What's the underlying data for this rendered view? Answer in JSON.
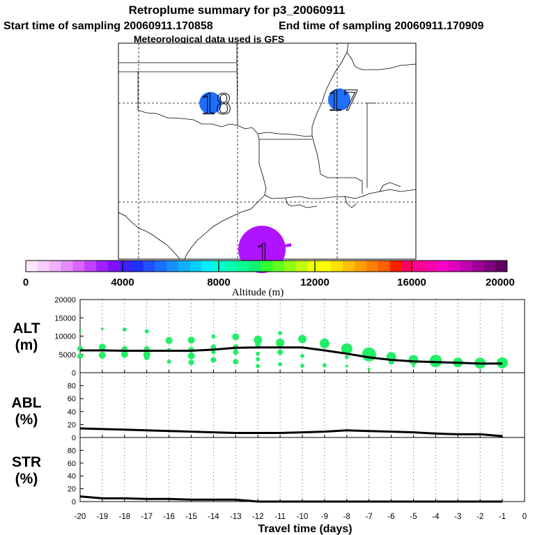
{
  "header": {
    "title": "Retroplume summary for p3_20060911",
    "start_label": "Start time of sampling 20060911.170858",
    "end_label": "End time of sampling 20060911.170909",
    "met_label": "Meteorological data used is GFS"
  },
  "map": {
    "markers": [
      {
        "label": "18",
        "color": "#1f6fff"
      },
      {
        "label": "17",
        "color": "#1f6fff"
      },
      {
        "label": "1",
        "color": "#b013ff"
      }
    ]
  },
  "colorbar": {
    "ticks": [
      "0",
      "4000",
      "8000",
      "12000",
      "16000",
      "20000"
    ],
    "label": "Altitude (m)",
    "colors": [
      "#ffe6ff",
      "#f7ccff",
      "#eeb2ff",
      "#e58cff",
      "#d966ff",
      "#c040ff",
      "#a020ff",
      "#8010ff",
      "#4020ff",
      "#2030ff",
      "#2050ff",
      "#1870ff",
      "#1890ff",
      "#10b0ff",
      "#00d0ff",
      "#00f0ff",
      "#00ffd0",
      "#00ffb0",
      "#00ff90",
      "#10f070",
      "#30ff30",
      "#60ff20",
      "#90ff10",
      "#c0ff00",
      "#f0ff00",
      "#ffff00",
      "#ffe000",
      "#ffc000",
      "#ffa000",
      "#ff8000",
      "#ff6000",
      "#ff2000",
      "#ff0060",
      "#ff0090",
      "#ff00b0",
      "#ff00c8",
      "#e000c0",
      "#c000b0",
      "#a00098",
      "#800080",
      "#600060"
    ]
  },
  "chart_data": [
    {
      "type": "scatter",
      "name": "ALT",
      "ylabel_line1": "ALT",
      "ylabel_line2": "(m)",
      "ylim": [
        0,
        20000
      ],
      "yticks": [
        "20000",
        "15000",
        "10000",
        "5000",
        "0"
      ],
      "points_color": "#22ee66",
      "points": [
        {
          "x": -20,
          "y": 11500,
          "s": 2
        },
        {
          "x": -20,
          "y": 6500,
          "s": 4
        },
        {
          "x": -20,
          "y": 4500,
          "s": 4
        },
        {
          "x": -19,
          "y": 12000,
          "s": 2
        },
        {
          "x": -19,
          "y": 7000,
          "s": 5
        },
        {
          "x": -19,
          "y": 4800,
          "s": 5
        },
        {
          "x": -18,
          "y": 11800,
          "s": 3
        },
        {
          "x": -18,
          "y": 6500,
          "s": 4
        },
        {
          "x": -18,
          "y": 5000,
          "s": 5
        },
        {
          "x": -17,
          "y": 11300,
          "s": 3
        },
        {
          "x": -17,
          "y": 6500,
          "s": 4
        },
        {
          "x": -17,
          "y": 5000,
          "s": 5
        },
        {
          "x": -17,
          "y": 4200,
          "s": 4
        },
        {
          "x": -16,
          "y": 8800,
          "s": 5
        },
        {
          "x": -16,
          "y": 6200,
          "s": 3
        },
        {
          "x": -16,
          "y": 3000,
          "s": 3
        },
        {
          "x": -15,
          "y": 8900,
          "s": 5
        },
        {
          "x": -15,
          "y": 6300,
          "s": 4
        },
        {
          "x": -15,
          "y": 4600,
          "s": 5
        },
        {
          "x": -15,
          "y": 2800,
          "s": 4
        },
        {
          "x": -14,
          "y": 9900,
          "s": 3
        },
        {
          "x": -14,
          "y": 7000,
          "s": 4
        },
        {
          "x": -14,
          "y": 5600,
          "s": 3
        },
        {
          "x": -14,
          "y": 3500,
          "s": 4
        },
        {
          "x": -13,
          "y": 9800,
          "s": 5
        },
        {
          "x": -13,
          "y": 7000,
          "s": 4
        },
        {
          "x": -13,
          "y": 5600,
          "s": 4
        },
        {
          "x": -13,
          "y": 3000,
          "s": 4
        },
        {
          "x": -12,
          "y": 9000,
          "s": 6
        },
        {
          "x": -12,
          "y": 7800,
          "s": 4
        },
        {
          "x": -12,
          "y": 5200,
          "s": 3
        },
        {
          "x": -12,
          "y": 3700,
          "s": 3
        },
        {
          "x": -12,
          "y": 1800,
          "s": 3
        },
        {
          "x": -11,
          "y": 10800,
          "s": 3
        },
        {
          "x": -11,
          "y": 8200,
          "s": 6
        },
        {
          "x": -11,
          "y": 5600,
          "s": 4
        },
        {
          "x": -11,
          "y": 2300,
          "s": 3
        },
        {
          "x": -10,
          "y": 9200,
          "s": 6
        },
        {
          "x": -10,
          "y": 4600,
          "s": 3
        },
        {
          "x": -10,
          "y": 1900,
          "s": 3
        },
        {
          "x": -9,
          "y": 8000,
          "s": 7
        },
        {
          "x": -9,
          "y": 2000,
          "s": 3
        },
        {
          "x": -8,
          "y": 6500,
          "s": 8
        },
        {
          "x": -8,
          "y": 4300,
          "s": 3
        },
        {
          "x": -8,
          "y": 1800,
          "s": 2
        },
        {
          "x": -7,
          "y": 5000,
          "s": 10
        },
        {
          "x": -7,
          "y": 1000,
          "s": 2
        },
        {
          "x": -6,
          "y": 4300,
          "s": 7
        },
        {
          "x": -6,
          "y": 3000,
          "s": 4
        },
        {
          "x": -5,
          "y": 3500,
          "s": 7
        },
        {
          "x": -5,
          "y": 1800,
          "s": 2
        },
        {
          "x": -4,
          "y": 3200,
          "s": 9
        },
        {
          "x": -3,
          "y": 2800,
          "s": 7
        },
        {
          "x": -2,
          "y": 2600,
          "s": 8
        },
        {
          "x": -1,
          "y": 2700,
          "s": 8
        }
      ],
      "mean_line": {
        "x": [
          -20,
          -19,
          -18,
          -17,
          -16,
          -15,
          -14,
          -13,
          -12,
          -11,
          -10,
          -9,
          -8,
          -7,
          -6,
          -5,
          -4,
          -3,
          -2,
          -1
        ],
        "y": [
          6100,
          6100,
          6000,
          6000,
          6000,
          6000,
          6300,
          6800,
          6900,
          6900,
          6900,
          6100,
          5200,
          4200,
          3500,
          3100,
          2900,
          2700,
          2500,
          2500
        ]
      }
    },
    {
      "type": "line",
      "name": "ABL",
      "ylabel_line1": "ABL",
      "ylabel_line2": "(%)",
      "ylim": [
        0,
        100
      ],
      "yticks": [
        "80",
        "60",
        "40",
        "20",
        "0"
      ],
      "x": [
        -20,
        -19,
        -18,
        -17,
        -16,
        -15,
        -14,
        -13,
        -12,
        -11,
        -10,
        -9,
        -8,
        -7,
        -6,
        -5,
        -4,
        -3,
        -2,
        -1
      ],
      "y": [
        14,
        13,
        12,
        11,
        10,
        9,
        8,
        7,
        7,
        7,
        8,
        9,
        11,
        10,
        9,
        8,
        6,
        5,
        5,
        2
      ]
    },
    {
      "type": "line",
      "name": "STR",
      "ylabel_line1": "STR",
      "ylabel_line2": "(%)",
      "ylim": [
        0,
        100
      ],
      "yticks": [
        "80",
        "60",
        "40",
        "20",
        "0"
      ],
      "x": [
        -20,
        -19,
        -18,
        -17,
        -16,
        -15,
        -14,
        -13,
        -12,
        -11,
        -10,
        -9,
        -8,
        -7,
        -6,
        -5,
        -4,
        -3,
        -2,
        -1
      ],
      "y": [
        8,
        5,
        5,
        4,
        4,
        3,
        3,
        3,
        0,
        0,
        0,
        0,
        0,
        0,
        0,
        0,
        0,
        0,
        0,
        0
      ]
    }
  ],
  "xaxis": {
    "ticks": [
      "-20",
      "-19",
      "-18",
      "-17",
      "-16",
      "-15",
      "-14",
      "-13",
      "-12",
      "-11",
      "-10",
      "-9",
      "-8",
      "-7",
      "-6",
      "-5",
      "-4",
      "-3",
      "-2",
      "-1",
      "0"
    ],
    "label": "Travel time (days)"
  }
}
